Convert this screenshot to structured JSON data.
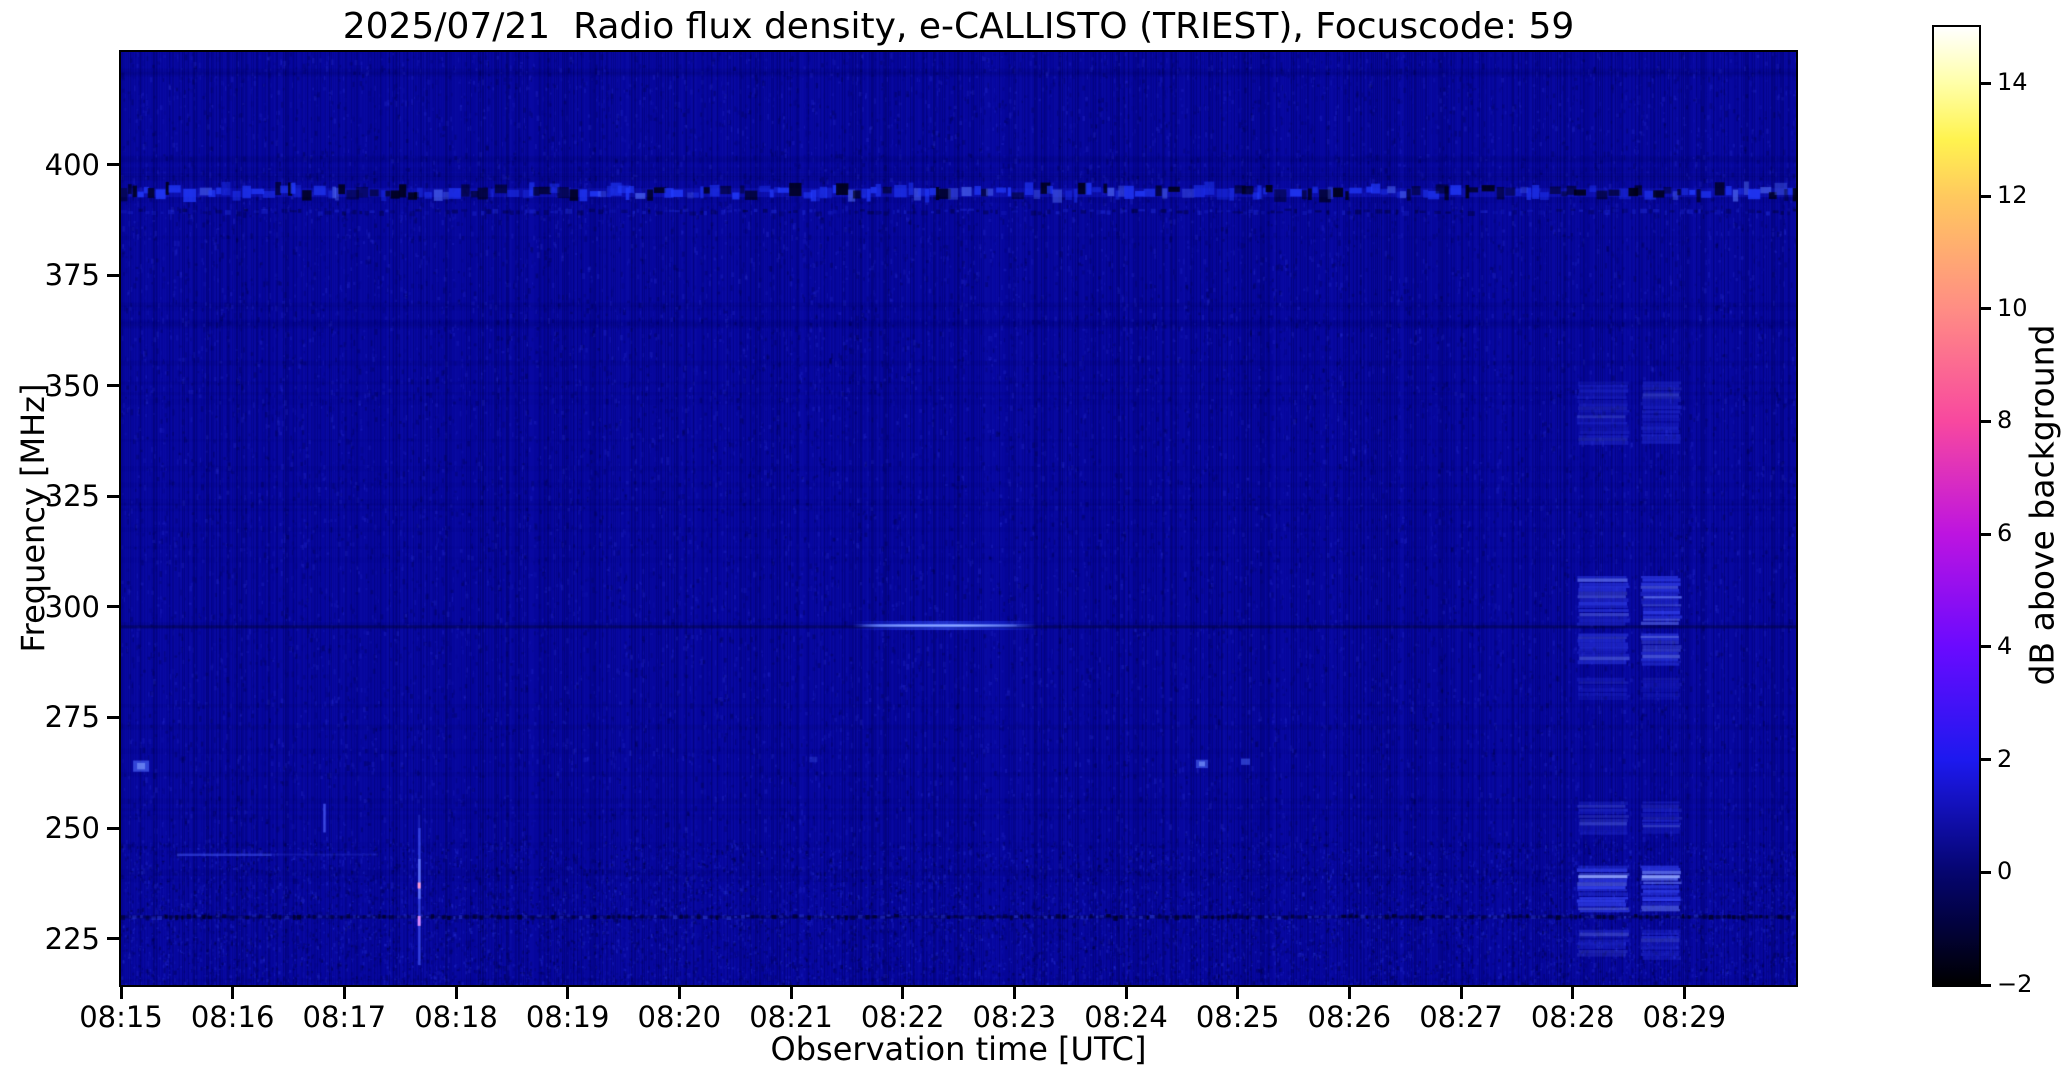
{
  "chart_data": {
    "type": "heatmap",
    "title": "2025/07/21  Radio flux density, e-CALLISTO (TRIEST), Focuscode: 59",
    "xlabel": "Observation time [UTC]",
    "ylabel": "Frequency [MHz]",
    "x_tick_labels": [
      "08:15",
      "08:16",
      "08:17",
      "08:18",
      "08:19",
      "08:20",
      "08:21",
      "08:22",
      "08:23",
      "08:24",
      "08:25",
      "08:26",
      "08:27",
      "08:28",
      "08:29"
    ],
    "x_range": [
      "08:15:00",
      "08:30:00"
    ],
    "x_span_minutes": 15,
    "y_tick_values": [
      400,
      375,
      350,
      325,
      300,
      275,
      250,
      225
    ],
    "ylim": [
      214.5,
      425.5
    ],
    "grid": false,
    "legend": "none",
    "colorbar": {
      "label": "dB above background",
      "tick_labels": [
        "14",
        "12",
        "10",
        "8",
        "6",
        "4",
        "2",
        "0",
        "−2"
      ],
      "tick_values": [
        14,
        12,
        10,
        8,
        6,
        4,
        2,
        0,
        -2
      ],
      "range": [
        -2,
        15
      ],
      "colormap": "gnuplot2-like (black-blue-violet-magenta-pink-orange-yellow-white)",
      "gradient_stops": [
        {
          "v": 15,
          "c": "#ffffff"
        },
        {
          "v": 14,
          "c": "#ffffa8"
        },
        {
          "v": 13,
          "c": "#fff34f"
        },
        {
          "v": 12,
          "c": "#ffc95e"
        },
        {
          "v": 10,
          "c": "#ff8d84"
        },
        {
          "v": 8,
          "c": "#f8489f"
        },
        {
          "v": 6,
          "c": "#bd14e0"
        },
        {
          "v": 4,
          "c": "#6a0aff"
        },
        {
          "v": 2,
          "c": "#1d19ef"
        },
        {
          "v": 0,
          "c": "#05056f"
        },
        {
          "v": -1,
          "c": "#02023a"
        },
        {
          "v": -2,
          "c": "#000000"
        }
      ]
    },
    "background": {
      "mean_db": 0.5,
      "color": "#06069b",
      "texture": "fine vertical striping receiver noise, slightly stronger below 247 MHz"
    },
    "features": [
      {
        "kind": "rfi_band",
        "desc": "speckled RFI band, alternating bright/dark blobs, full width",
        "freq_center": 393.8,
        "freq_width": 9,
        "t": [
          0,
          15
        ]
      },
      {
        "kind": "secondary_row",
        "desc": "fainter speckle row below main RFI band",
        "freq_center": 389.3,
        "t": [
          0,
          15
        ]
      },
      {
        "kind": "ripple_line",
        "desc": "dashed dark interference ripple line",
        "freq_center": 230,
        "t": [
          0,
          15
        ]
      },
      {
        "kind": "dark_row",
        "desc": "faint dark carrier row across plot",
        "freq_center": 295.6,
        "t": [
          0,
          15
        ]
      },
      {
        "kind": "burst_line",
        "desc": "bright narrowband emission line ~296 MHz around 08:22",
        "freq_center": 295.8,
        "t": [
          6.55,
          8.2
        ],
        "peak_db": 3.5
      },
      {
        "kind": "faint_line",
        "desc": "faint narrowband line ~244 MHz near 08:16",
        "freq_center": 244,
        "t": [
          0.5,
          1.35
        ],
        "tail_t": 2.3
      },
      {
        "kind": "vertical_streak",
        "desc": "short broadband spike near 08:17:40",
        "t0": 2.67,
        "freq": [
          219,
          250
        ],
        "hot_freqs": [
          237,
          229
        ]
      },
      {
        "kind": "short_streak",
        "desc": "small spike near 08:16:50",
        "t0": 1.82,
        "freq": [
          249,
          255.5
        ]
      },
      {
        "kind": "dot",
        "desc": "bright blob at left edge",
        "t0": 0.18,
        "freq_center": 264,
        "size": 16,
        "alpha": 0.6
      },
      {
        "kind": "dot",
        "desc": "very faint blob",
        "t0": 6.2,
        "freq_center": 265.5,
        "size": 8,
        "alpha": 0.25
      },
      {
        "kind": "dot",
        "desc": "blob near 08:24:40",
        "t0": 9.68,
        "freq_center": 264.5,
        "size": 12,
        "alpha": 0.55
      },
      {
        "kind": "dot",
        "desc": "blob near 08:25:05",
        "t0": 10.07,
        "freq_center": 265,
        "size": 9,
        "alpha": 0.5
      },
      {
        "kind": "block_column",
        "desc": "striped interference blocks ~08:28:05-08:28:30",
        "t": [
          13.05,
          13.49
        ],
        "bands": [
          {
            "f": [
              337,
              351
            ],
            "a": 0.26
          },
          {
            "f": [
              296,
              307
            ],
            "a": 0.5
          },
          {
            "f": [
              287,
              294
            ],
            "a": 0.42
          },
          {
            "f": [
              279,
              284
            ],
            "a": 0.18
          },
          {
            "f": [
              249,
              256
            ],
            "a": 0.3
          },
          {
            "f": [
              231,
              241.5
            ],
            "a": 0.62
          },
          {
            "f": [
              221,
              227
            ],
            "a": 0.3
          }
        ],
        "core_line": 239
      },
      {
        "kind": "block_column",
        "desc": "striped interference blocks ~08:28:37-08:28:58",
        "t": [
          13.62,
          13.96
        ],
        "bands": [
          {
            "f": [
              337,
              351
            ],
            "a": 0.3
          },
          {
            "f": [
              296,
              307
            ],
            "a": 0.56
          },
          {
            "f": [
              287,
              294
            ],
            "a": 0.48
          },
          {
            "f": [
              279,
              284
            ],
            "a": 0.2
          },
          {
            "f": [
              249,
              256
            ],
            "a": 0.32
          },
          {
            "f": [
              231,
              241.5
            ],
            "a": 0.66
          },
          {
            "f": [
              221,
              227
            ],
            "a": 0.34
          }
        ],
        "core_line": 239
      }
    ]
  }
}
